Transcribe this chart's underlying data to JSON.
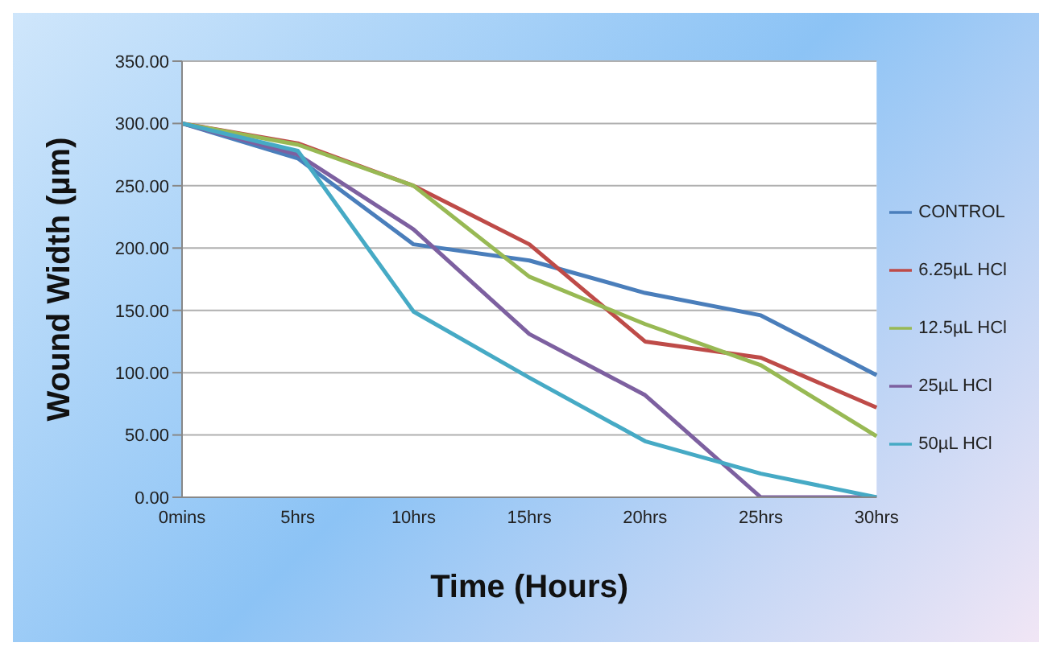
{
  "chart_data": {
    "type": "line",
    "xlabel": "Time (Hours)",
    "ylabel": "Wound Width (µm)",
    "categories": [
      "0mins",
      "5hrs",
      "10hrs",
      "15hrs",
      "20hrs",
      "25hrs",
      "30hrs"
    ],
    "series": [
      {
        "name": "CONTROL",
        "color": "#4a7ebb",
        "values": [
          300,
          272,
          203,
          190,
          164,
          146,
          98
        ]
      },
      {
        "name": "6.25µL HCl",
        "color": "#be4b48",
        "values": [
          300,
          284,
          250,
          203,
          125,
          112,
          72
        ]
      },
      {
        "name": "12.5µL HCl",
        "color": "#98b954",
        "values": [
          300,
          283,
          250,
          177,
          139,
          106,
          49
        ]
      },
      {
        "name": "25µL HCl",
        "color": "#7d60a0",
        "values": [
          300,
          275,
          215,
          131,
          82,
          0,
          0
        ]
      },
      {
        "name": "50µL HCl",
        "color": "#46aac5",
        "values": [
          300,
          278,
          149,
          96,
          45,
          19,
          0
        ]
      }
    ],
    "ylim": [
      0,
      350
    ],
    "yticks": [
      {
        "value": 0,
        "label": "0.00"
      },
      {
        "value": 50,
        "label": "50.00"
      },
      {
        "value": 100,
        "label": "100.00"
      },
      {
        "value": 150,
        "label": "150.00"
      },
      {
        "value": 200,
        "label": "200.00"
      },
      {
        "value": 250,
        "label": "250.00"
      },
      {
        "value": 300,
        "label": "300.00"
      },
      {
        "value": 350,
        "label": "350.00"
      }
    ],
    "grid": "y",
    "legend": "right",
    "marker": "none"
  }
}
